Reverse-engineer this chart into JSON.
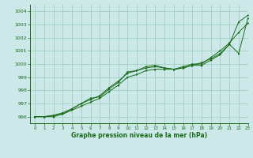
{
  "x": [
    0,
    1,
    2,
    3,
    4,
    5,
    6,
    7,
    8,
    9,
    10,
    11,
    12,
    13,
    14,
    15,
    16,
    17,
    18,
    19,
    20,
    21,
    22,
    23
  ],
  "line1": [
    996.0,
    996.0,
    996.0,
    996.2,
    996.5,
    996.8,
    997.1,
    997.4,
    997.9,
    998.4,
    999.0,
    999.2,
    999.5,
    999.6,
    999.6,
    999.6,
    999.7,
    999.9,
    1000.1,
    1000.4,
    1000.8,
    1001.5,
    1003.2,
    1003.7
  ],
  "line2": [
    996.0,
    996.0,
    996.1,
    996.2,
    996.6,
    997.0,
    997.4,
    997.5,
    998.1,
    998.6,
    999.4,
    999.5,
    999.8,
    999.9,
    999.7,
    999.6,
    999.8,
    1000.0,
    1000.0,
    1000.5,
    1001.0,
    1001.6,
    1002.4,
    1003.1
  ],
  "line3": [
    996.0,
    996.0,
    996.1,
    996.3,
    996.6,
    997.0,
    997.3,
    997.6,
    998.2,
    998.7,
    999.3,
    999.5,
    999.7,
    999.8,
    999.7,
    999.6,
    999.7,
    999.9,
    999.9,
    1000.3,
    1000.7,
    1001.5,
    1000.8,
    1003.5
  ],
  "line_color": "#1a6b1a",
  "bg_color": "#cce8e8",
  "grid_color": "#99ccbb",
  "xlabel": "Graphe pression niveau de la mer (hPa)",
  "ylim": [
    995.5,
    1004.5
  ],
  "xlim": [
    -0.5,
    23
  ],
  "yticks": [
    996,
    997,
    998,
    999,
    1000,
    1001,
    1002,
    1003,
    1004
  ],
  "xticks": [
    0,
    1,
    2,
    3,
    4,
    5,
    6,
    7,
    8,
    9,
    10,
    11,
    12,
    13,
    14,
    15,
    16,
    17,
    18,
    19,
    20,
    21,
    22,
    23
  ]
}
